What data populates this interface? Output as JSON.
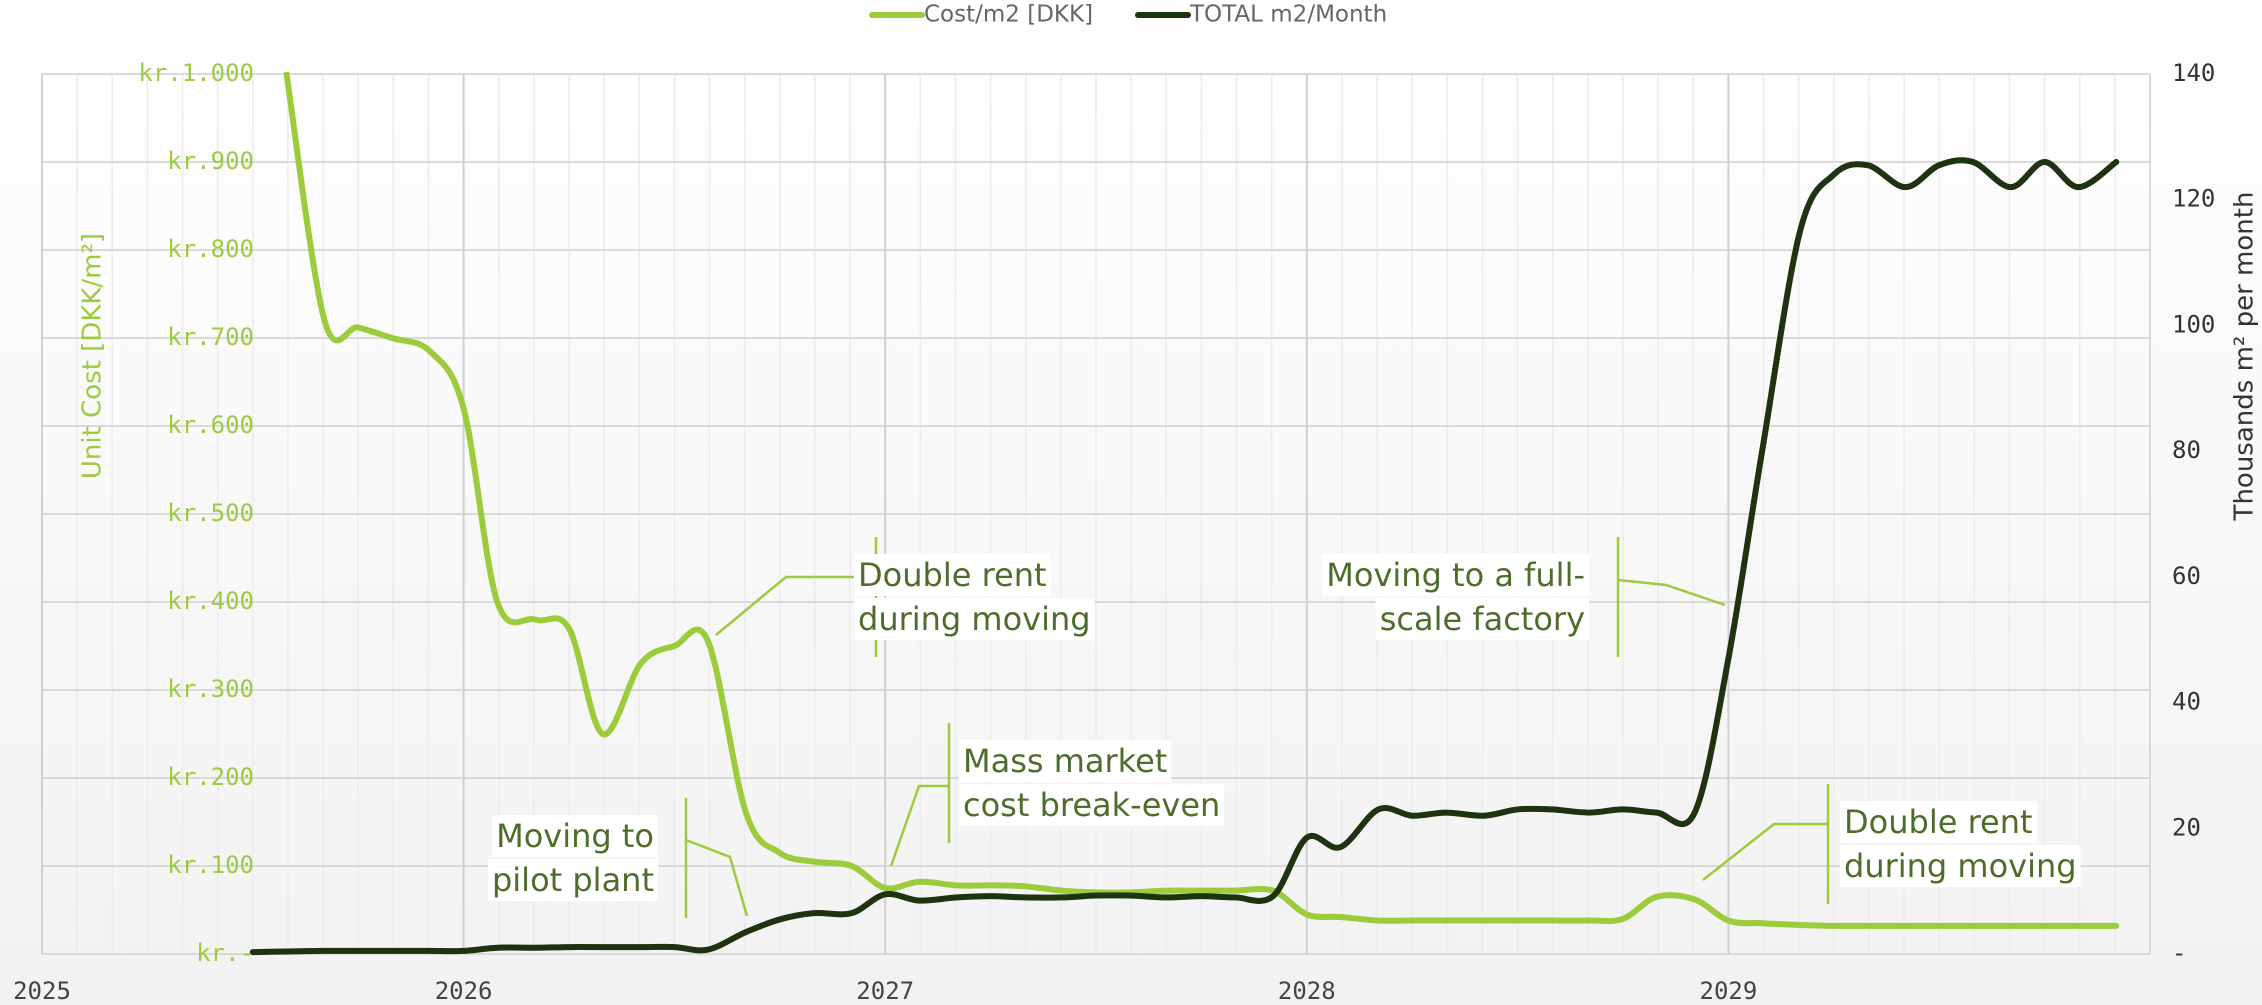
{
  "chart_data": {
    "type": "line",
    "series": [
      {
        "name": "Cost/m2 [DKK]",
        "color": "#9ccb3b",
        "axis": "y",
        "values": [
          null,
          1000,
          720,
          712,
          700,
          685,
          620,
          400,
          380,
          370,
          250,
          330,
          350,
          355,
          160,
          115,
          105,
          100,
          75,
          82,
          78,
          78,
          77,
          72,
          70,
          70,
          72,
          72,
          72,
          72,
          45,
          42,
          38,
          38,
          38,
          38,
          38,
          38,
          38,
          40,
          65,
          62,
          38,
          35,
          33,
          32,
          32,
          32,
          32,
          32,
          32,
          32,
          32,
          32
        ]
      },
      {
        "name": "TOTAL m2/Month",
        "color": "#1e3310",
        "axis": "y2",
        "values": [
          0.3,
          0.4,
          0.5,
          0.5,
          0.5,
          0.5,
          0.5,
          1.0,
          1.0,
          1.1,
          1.1,
          1.1,
          1.1,
          0.7,
          3.5,
          5.5,
          6.5,
          6.5,
          9.5,
          8.5,
          9.0,
          9.2,
          9.0,
          9.0,
          9.3,
          9.3,
          9.0,
          9.2,
          9.0,
          9.2,
          18.5,
          17,
          23,
          22,
          22.5,
          22,
          23,
          23,
          22.5,
          23,
          22.5,
          22.5,
          47,
          80,
          115,
          124,
          125.5,
          122,
          125.5,
          126,
          122,
          126,
          122,
          126
        ]
      }
    ],
    "x": [
      2025.5,
      2025.58,
      2025.67,
      2025.75,
      2025.83,
      2025.92,
      2026,
      2026.08,
      2026.17,
      2026.25,
      2026.33,
      2026.42,
      2026.5,
      2026.58,
      2026.67,
      2026.75,
      2026.83,
      2026.92,
      2027,
      2027.08,
      2027.17,
      2027.25,
      2027.33,
      2027.42,
      2027.5,
      2027.58,
      2027.67,
      2027.75,
      2027.83,
      2027.92,
      2028,
      2028.08,
      2028.17,
      2028.25,
      2028.33,
      2028.42,
      2028.5,
      2028.58,
      2028.67,
      2028.75,
      2028.83,
      2028.92,
      2029,
      2029.08,
      2029.17,
      2029.25,
      2029.33,
      2029.42,
      2029.5,
      2029.58,
      2029.67,
      2029.75,
      2029.83,
      2029.92
    ],
    "xlim": [
      2025,
      2030
    ],
    "xticks": [
      2025,
      2026,
      2027,
      2028,
      2029
    ],
    "ylim": [
      0,
      1000
    ],
    "yticks": [
      {
        "value": 0,
        "label": "kr.-"
      },
      {
        "value": 100,
        "label": "kr.100"
      },
      {
        "value": 200,
        "label": "kr.200"
      },
      {
        "value": 300,
        "label": "kr.300"
      },
      {
        "value": 400,
        "label": "kr.400"
      },
      {
        "value": 500,
        "label": "kr.500"
      },
      {
        "value": 600,
        "label": "kr.600"
      },
      {
        "value": 700,
        "label": "kr.700"
      },
      {
        "value": 800,
        "label": "kr.800"
      },
      {
        "value": 900,
        "label": "kr.900"
      },
      {
        "value": 1000,
        "label": "kr.1.000"
      }
    ],
    "y2lim": [
      0,
      140
    ],
    "y2ticks": [
      {
        "value": 0,
        "label": "-"
      },
      20,
      40,
      60,
      80,
      100,
      120,
      140
    ],
    "ylabel": "Unit Cost [DKK/m²]",
    "y2label": "Thousands m² per month",
    "grid": true,
    "legend": "top",
    "annotations": [
      {
        "lines": [
          "Double rent",
          "during moving"
        ]
      },
      {
        "lines": [
          "Mass market",
          "cost break-even"
        ]
      },
      {
        "lines": [
          "Moving to",
          "pilot plant"
        ]
      },
      {
        "lines": [
          "Moving to a full-",
          "scale factory"
        ]
      },
      {
        "lines": [
          "Double rent",
          "during moving"
        ]
      }
    ]
  }
}
